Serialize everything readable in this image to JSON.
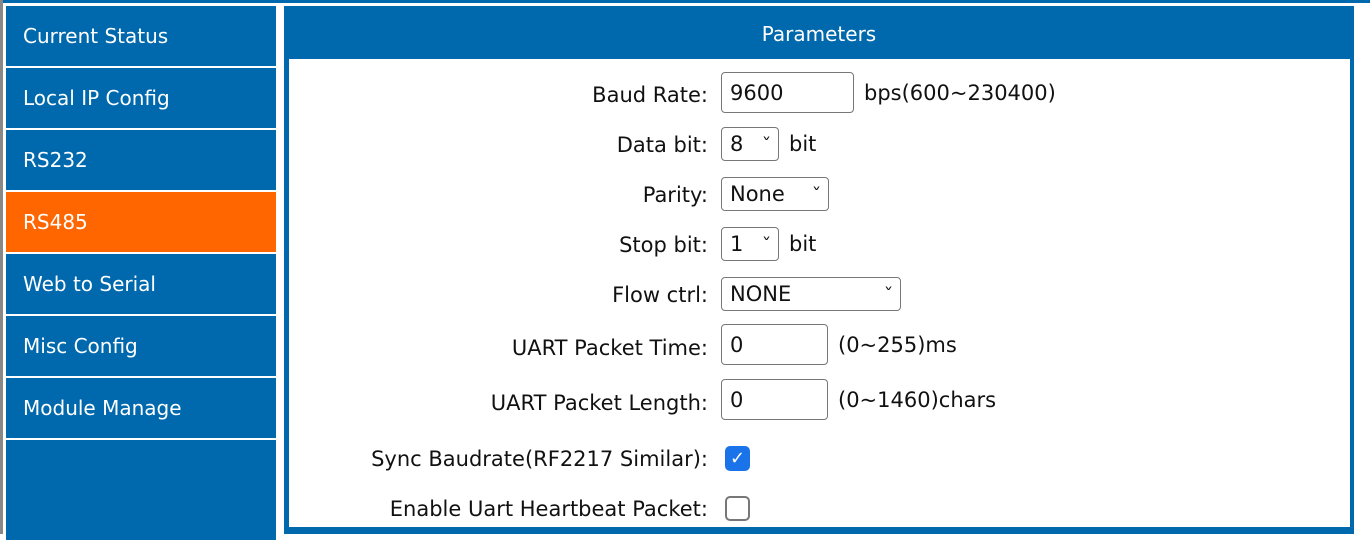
{
  "sidebar": {
    "items": [
      {
        "label": "Current Status",
        "active": false
      },
      {
        "label": "Local IP Config",
        "active": false
      },
      {
        "label": "RS232",
        "active": false
      },
      {
        "label": "RS485",
        "active": true
      },
      {
        "label": "Web to Serial",
        "active": false
      },
      {
        "label": "Misc Config",
        "active": false
      },
      {
        "label": "Module Manage",
        "active": false
      }
    ]
  },
  "colors": {
    "primary": "#0068ac",
    "active": "#ff6600",
    "checkbox": "#1a73e8"
  },
  "panel": {
    "title": "Parameters",
    "baud": {
      "label": "Baud Rate:",
      "value": "9600",
      "hint": "bps(600~230400)"
    },
    "data_bit": {
      "label": "Data bit:",
      "value": "8",
      "unit": "bit"
    },
    "parity": {
      "label": "Parity:",
      "value": "None"
    },
    "stop_bit": {
      "label": "Stop bit:",
      "value": "1",
      "unit": "bit"
    },
    "flow": {
      "label": "Flow ctrl:",
      "value": "NONE"
    },
    "packet_time": {
      "label": "UART Packet Time:",
      "value": "0",
      "hint": "(0~255)ms"
    },
    "packet_length": {
      "label": "UART Packet Length:",
      "value": "0",
      "hint": "(0~1460)chars"
    },
    "sync_baud": {
      "label": "Sync Baudrate(RF2217 Similar):",
      "checked": true
    },
    "heartbeat": {
      "label": "Enable Uart Heartbeat Packet:",
      "checked": false
    }
  }
}
